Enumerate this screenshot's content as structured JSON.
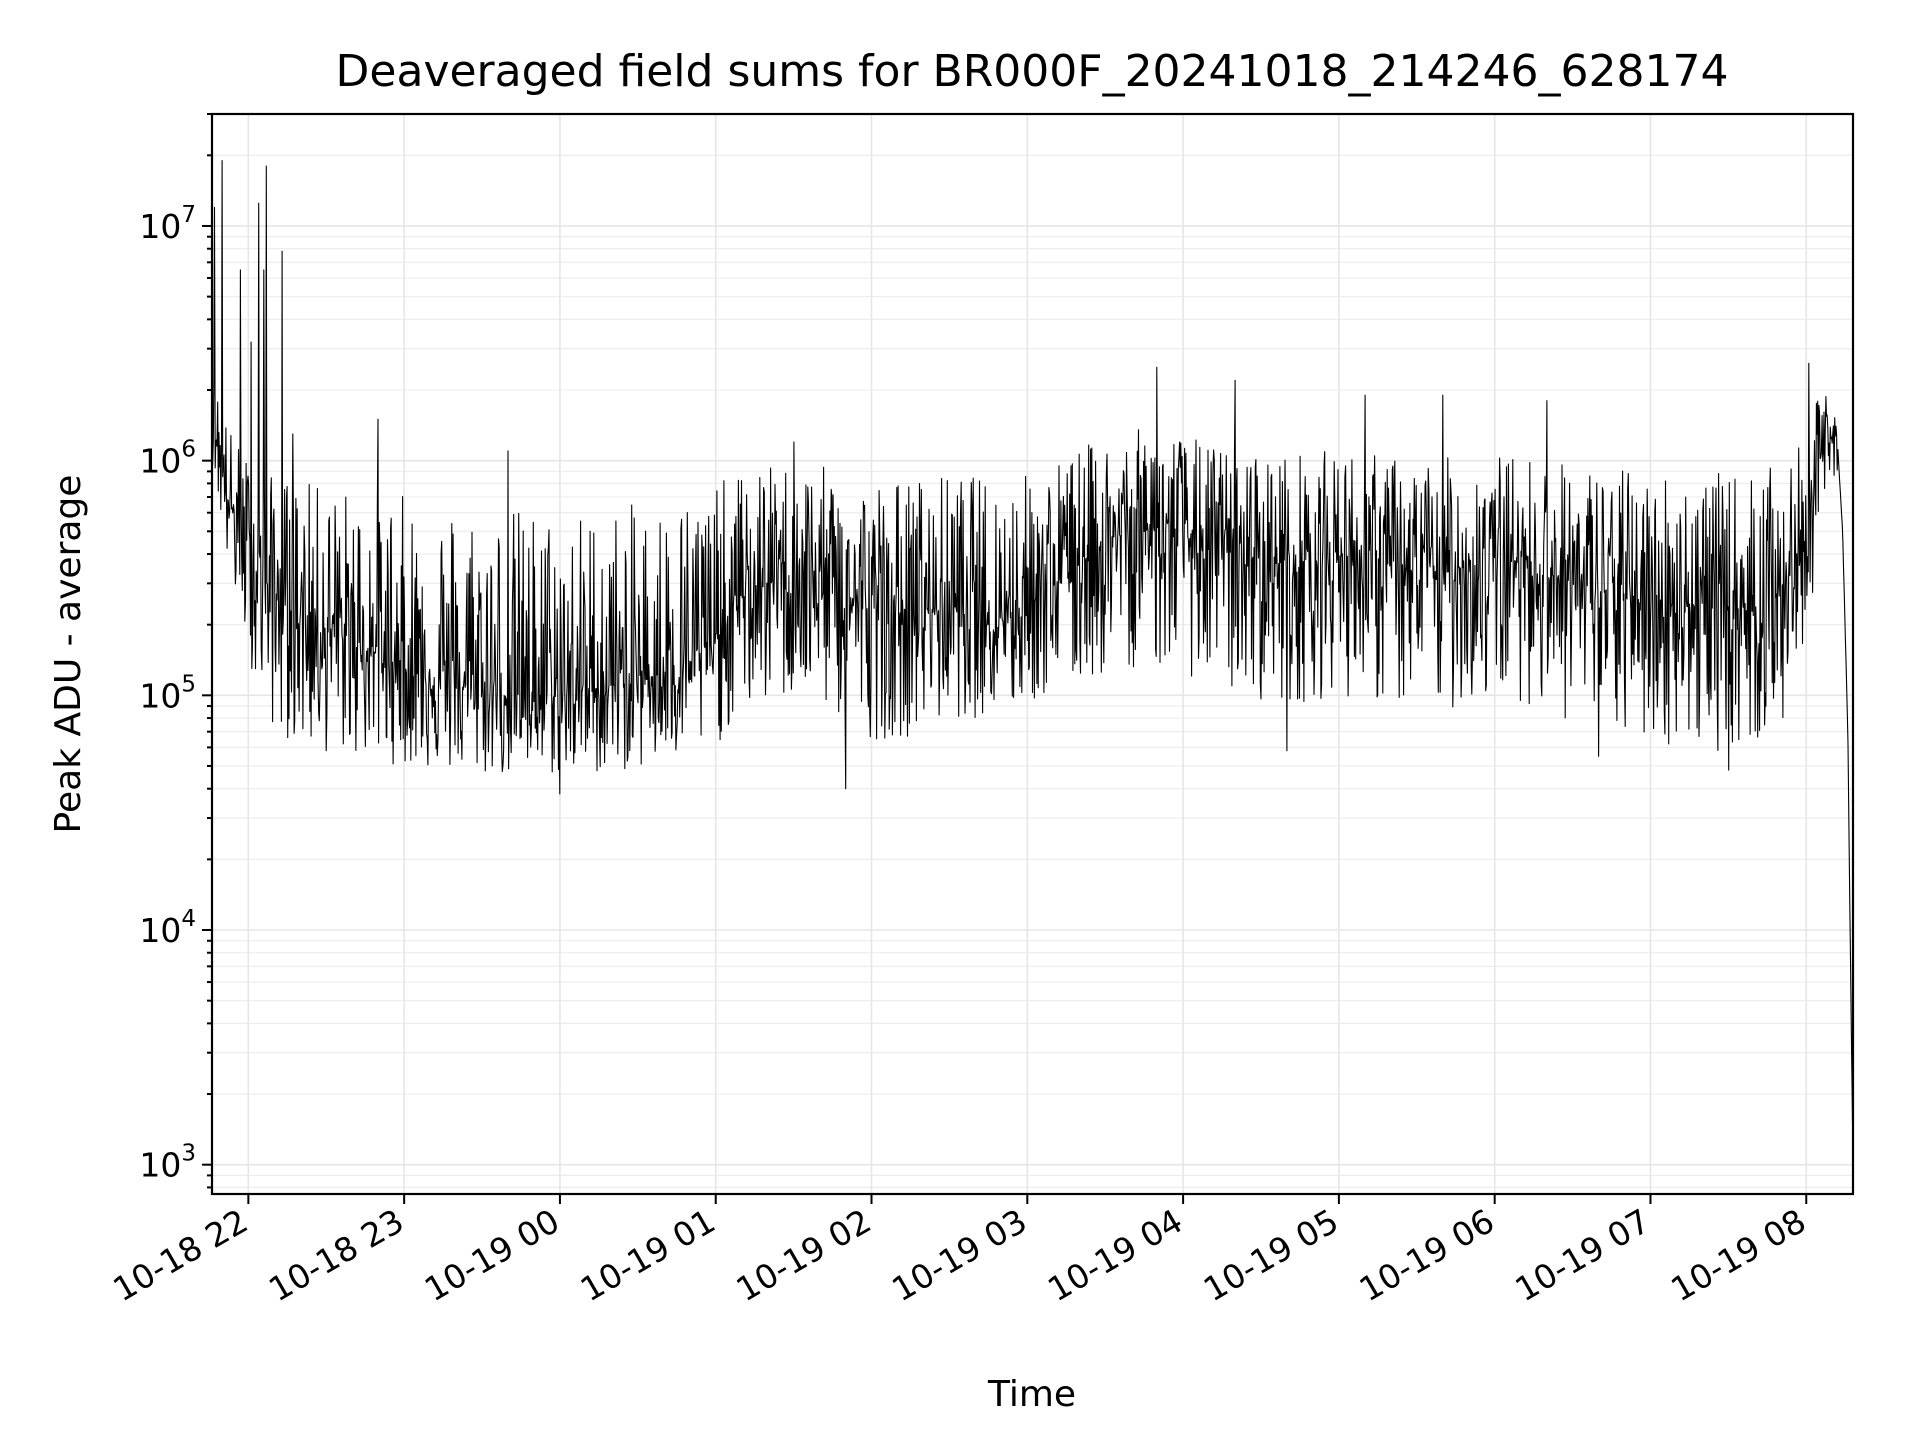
{
  "chart_data": {
    "type": "line",
    "title": "Deaveraged field sums for BR000F_20241018_214246_628174",
    "xlabel": "Time",
    "ylabel": "Peak ADU - average",
    "y_scale": "log",
    "ylim": [
      750,
      30000000
    ],
    "xlim": [
      "2024-10-18 21:46",
      "2024-10-19 08:18"
    ],
    "grid": true,
    "legend": "none",
    "line_color": "#000000",
    "x_ticks": [
      {
        "label": "10-18 22",
        "value": "2024-10-18 22:00"
      },
      {
        "label": "10-18 23",
        "value": "2024-10-18 23:00"
      },
      {
        "label": "10-19 00",
        "value": "2024-10-19 00:00"
      },
      {
        "label": "10-19 01",
        "value": "2024-10-19 01:00"
      },
      {
        "label": "10-19 02",
        "value": "2024-10-19 02:00"
      },
      {
        "label": "10-19 03",
        "value": "2024-10-19 03:00"
      },
      {
        "label": "10-19 04",
        "value": "2024-10-19 04:00"
      },
      {
        "label": "10-19 05",
        "value": "2024-10-19 05:00"
      },
      {
        "label": "10-19 06",
        "value": "2024-10-19 06:00"
      },
      {
        "label": "10-19 07",
        "value": "2024-10-19 07:00"
      },
      {
        "label": "10-19 08",
        "value": "2024-10-19 08:00"
      }
    ],
    "y_ticks": [
      {
        "base": "10",
        "exp": "3",
        "value": 1000
      },
      {
        "base": "10",
        "exp": "4",
        "value": 10000
      },
      {
        "base": "10",
        "exp": "5",
        "value": 100000
      },
      {
        "base": "10",
        "exp": "6",
        "value": 1000000
      },
      {
        "base": "10",
        "exp": "7",
        "value": 10000000
      }
    ],
    "series": [
      {
        "x": [
          "2024-10-18 21:46",
          "2024-10-18 21:48",
          "2024-10-18 21:50",
          "2024-10-18 21:52",
          "2024-10-18 21:54",
          "2024-10-18 21:56",
          "2024-10-18 21:58",
          "2024-10-18 22:00",
          "2024-10-18 22:02",
          "2024-10-18 22:04",
          "2024-10-18 22:06",
          "2024-10-18 22:08",
          "2024-10-18 22:10",
          "2024-10-18 22:15",
          "2024-10-18 22:20",
          "2024-10-18 22:25",
          "2024-10-18 22:30",
          "2024-10-18 22:40",
          "2024-10-18 22:50",
          "2024-10-18 23:00",
          "2024-10-18 23:10",
          "2024-10-18 23:20",
          "2024-10-18 23:30",
          "2024-10-18 23:40",
          "2024-10-18 23:50",
          "2024-10-19 00:00",
          "2024-10-19 00:10",
          "2024-10-19 00:20",
          "2024-10-19 00:30",
          "2024-10-19 00:40",
          "2024-10-19 00:50",
          "2024-10-19 01:00",
          "2024-10-19 01:10",
          "2024-10-19 01:20",
          "2024-10-19 01:30",
          "2024-10-19 01:40",
          "2024-10-19 01:50",
          "2024-10-19 02:00",
          "2024-10-19 02:10",
          "2024-10-19 02:20",
          "2024-10-19 02:30",
          "2024-10-19 02:40",
          "2024-10-19 02:50",
          "2024-10-19 03:00",
          "2024-10-19 03:10",
          "2024-10-19 03:20",
          "2024-10-19 03:30",
          "2024-10-19 03:40",
          "2024-10-19 03:50",
          "2024-10-19 04:00",
          "2024-10-19 04:10",
          "2024-10-19 04:20",
          "2024-10-19 04:30",
          "2024-10-19 04:40",
          "2024-10-19 04:50",
          "2024-10-19 05:00",
          "2024-10-19 05:10",
          "2024-10-19 05:20",
          "2024-10-19 05:30",
          "2024-10-19 05:40",
          "2024-10-19 05:50",
          "2024-10-19 06:00",
          "2024-10-19 06:10",
          "2024-10-19 06:20",
          "2024-10-19 06:30",
          "2024-10-19 06:40",
          "2024-10-19 06:50",
          "2024-10-19 07:00",
          "2024-10-19 07:10",
          "2024-10-19 07:20",
          "2024-10-19 07:30",
          "2024-10-19 07:40",
          "2024-10-19 07:50",
          "2024-10-19 07:56",
          "2024-10-19 08:00",
          "2024-10-19 08:04",
          "2024-10-19 08:08",
          "2024-10-19 08:12",
          "2024-10-19 08:14",
          "2024-10-19 08:16",
          "2024-10-19 08:17",
          "2024-10-19 08:18"
        ],
        "median": [
          1800000,
          1200000,
          900000,
          700000,
          600000,
          500000,
          450000,
          400000,
          380000,
          330000,
          300000,
          280000,
          260000,
          240000,
          220000,
          200000,
          190000,
          170000,
          150000,
          130000,
          120000,
          110000,
          105000,
          100000,
          100000,
          100000,
          105000,
          110000,
          115000,
          125000,
          140000,
          170000,
          260000,
          300000,
          320000,
          300000,
          260000,
          230000,
          220000,
          230000,
          240000,
          230000,
          220000,
          250000,
          300000,
          380000,
          450000,
          500000,
          520000,
          480000,
          420000,
          400000,
          380000,
          360000,
          370000,
          400000,
          380000,
          350000,
          320000,
          330000,
          360000,
          380000,
          370000,
          340000,
          300000,
          280000,
          260000,
          250000,
          250000,
          240000,
          230000,
          240000,
          280000,
          350000,
          500000,
          900000,
          1300000,
          1200000,
          500000,
          70000,
          8000,
          1000
        ],
        "low": [
          1000000,
          700000,
          500000,
          350000,
          280000,
          220000,
          180000,
          150000,
          120000,
          100000,
          90000,
          80000,
          70000,
          65000,
          60000,
          58000,
          56000,
          55000,
          52000,
          50000,
          48000,
          46000,
          45000,
          45000,
          45000,
          45000,
          45000,
          47000,
          48000,
          50000,
          52000,
          60000,
          85000,
          90000,
          95000,
          90000,
          75000,
          65000,
          65000,
          70000,
          80000,
          80000,
          80000,
          90000,
          100000,
          110000,
          120000,
          130000,
          130000,
          125000,
          110000,
          100000,
          95000,
          90000,
          95000,
          100000,
          95000,
          90000,
          85000,
          85000,
          90000,
          95000,
          95000,
          85000,
          75000,
          70000,
          65000,
          62000,
          60000,
          58000,
          58000,
          60000,
          70000,
          85000,
          150000,
          400000,
          700000,
          600000,
          200000,
          20000,
          3000,
          800
        ],
        "high": [
          2600000,
          2200000,
          1800000,
          1500000,
          1300000,
          1200000,
          1100000,
          1050000,
          1000000,
          950000,
          900000,
          880000,
          860000,
          850000,
          820000,
          800000,
          780000,
          760000,
          740000,
          720000,
          700000,
          680000,
          660000,
          650000,
          640000,
          620000,
          620000,
          640000,
          660000,
          700000,
          750000,
          800000,
          900000,
          950000,
          1000000,
          950000,
          900000,
          850000,
          850000,
          870000,
          880000,
          870000,
          860000,
          900000,
          1000000,
          1150000,
          1250000,
          1350000,
          1400000,
          1300000,
          1200000,
          1150000,
          1100000,
          1080000,
          1100000,
          1120000,
          1100000,
          1050000,
          1020000,
          1030000,
          1060000,
          1080000,
          1070000,
          1030000,
          980000,
          950000,
          930000,
          920000,
          920000,
          900000,
          880000,
          900000,
          950000,
          1050000,
          1400000,
          1800000,
          2000000,
          1800000,
          900000,
          150000,
          15000,
          2000
        ],
        "spikes": [
          {
            "x": "2024-10-18 21:47",
            "y": 12000000
          },
          {
            "x": "2024-10-18 21:50",
            "y": 19000000
          },
          {
            "x": "2024-10-18 21:57",
            "y": 6500000
          },
          {
            "x": "2024-10-18 22:01",
            "y": 3200000
          },
          {
            "x": "2024-10-18 22:04",
            "y": 12500000
          },
          {
            "x": "2024-10-18 22:06",
            "y": 6500000
          },
          {
            "x": "2024-10-18 22:07",
            "y": 18000000
          },
          {
            "x": "2024-10-18 22:13",
            "y": 7800000
          },
          {
            "x": "2024-10-18 22:17",
            "y": 1300000
          },
          {
            "x": "2024-10-18 22:50",
            "y": 1500000
          },
          {
            "x": "2024-10-18 23:40",
            "y": 1100000
          },
          {
            "x": "2024-10-19 01:30",
            "y": 1200000
          },
          {
            "x": "2024-10-19 03:50",
            "y": 2500000
          },
          {
            "x": "2024-10-19 04:20",
            "y": 2200000
          },
          {
            "x": "2024-10-19 05:10",
            "y": 1900000
          },
          {
            "x": "2024-10-19 05:40",
            "y": 1900000
          },
          {
            "x": "2024-10-19 06:20",
            "y": 1800000
          },
          {
            "x": "2024-10-19 08:01",
            "y": 2600000
          },
          {
            "x": "2024-10-18 23:40",
            "y": 36000
          },
          {
            "x": "2024-10-19 00:00",
            "y": 38000
          },
          {
            "x": "2024-10-19 01:50",
            "y": 40000
          },
          {
            "x": "2024-10-19 04:40",
            "y": 58000
          },
          {
            "x": "2024-10-19 06:40",
            "y": 55000
          },
          {
            "x": "2024-10-19 07:30",
            "y": 48000
          }
        ]
      }
    ]
  }
}
